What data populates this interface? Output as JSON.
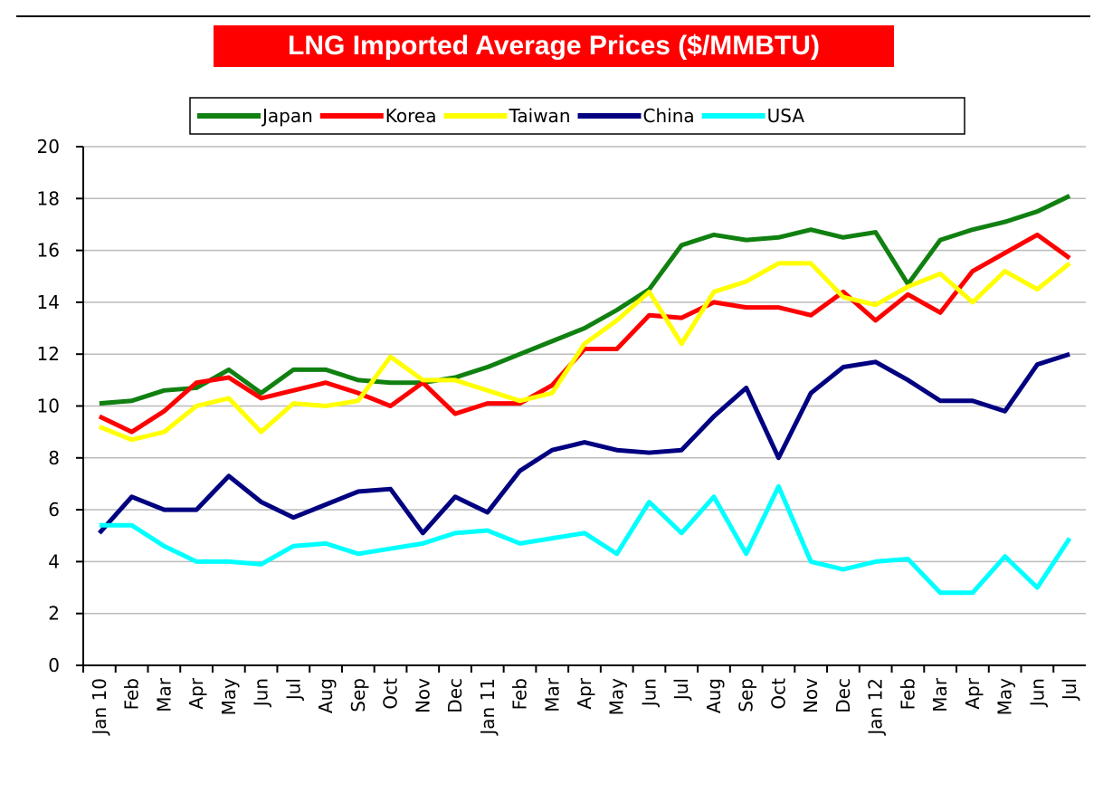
{
  "chart_data": {
    "type": "line",
    "title": "LNG Imported Average Prices ($/MMBTU)",
    "categories": [
      "Jan 10",
      "Feb",
      "Mar",
      "Apr",
      "May",
      "Jun",
      "Jul",
      "Aug",
      "Sep",
      "Oct",
      "Nov",
      "Dec",
      "Jan 11",
      "Feb",
      "Mar",
      "Apr",
      "May",
      "Jun",
      "Jul",
      "Aug",
      "Sep",
      "Oct",
      "Nov",
      "Dec",
      "Jan 12",
      "Feb",
      "Mar",
      "Apr",
      "May",
      "Jun",
      "Jul"
    ],
    "series": [
      {
        "name": "Japan",
        "color": "#108010",
        "values": [
          10.1,
          10.2,
          10.6,
          10.7,
          11.4,
          10.5,
          11.4,
          11.4,
          11.0,
          10.9,
          10.9,
          11.1,
          11.5,
          12.0,
          12.5,
          13.0,
          13.7,
          14.5,
          16.2,
          16.6,
          16.4,
          16.5,
          16.8,
          16.5,
          16.7,
          14.7,
          16.4,
          16.8,
          17.1,
          17.5,
          18.1
        ]
      },
      {
        "name": "Korea",
        "color": "#ff0000",
        "values": [
          9.6,
          9.0,
          9.8,
          10.9,
          11.1,
          10.3,
          10.6,
          10.9,
          10.5,
          10.0,
          10.9,
          9.7,
          10.1,
          10.1,
          10.8,
          12.2,
          12.2,
          13.5,
          13.4,
          14.0,
          13.8,
          13.8,
          13.5,
          14.4,
          13.3,
          14.3,
          13.6,
          15.2,
          15.9,
          16.6,
          15.7
        ]
      },
      {
        "name": "Taiwan",
        "color": "#ffff00",
        "values": [
          9.2,
          8.7,
          9.0,
          10.0,
          10.3,
          9.0,
          10.1,
          10.0,
          10.2,
          11.9,
          11.0,
          11.0,
          10.6,
          10.2,
          10.5,
          12.4,
          13.3,
          14.4,
          12.4,
          14.4,
          14.8,
          15.5,
          15.5,
          14.2,
          13.9,
          14.6,
          15.1,
          14.0,
          15.2,
          14.5,
          15.5
        ]
      },
      {
        "name": "China",
        "color": "#000080",
        "values": [
          5.1,
          6.5,
          6.0,
          6.0,
          7.3,
          6.3,
          5.7,
          6.2,
          6.7,
          6.8,
          5.1,
          6.5,
          5.9,
          7.5,
          8.3,
          8.6,
          8.3,
          8.2,
          8.3,
          9.6,
          10.7,
          8.0,
          10.5,
          11.5,
          11.7,
          11.0,
          10.2,
          10.2,
          9.8,
          11.6,
          12.0
        ]
      },
      {
        "name": "USA",
        "color": "#00ffff",
        "values": [
          5.4,
          5.4,
          4.6,
          4.0,
          4.0,
          3.9,
          4.6,
          4.7,
          4.3,
          4.5,
          4.7,
          5.1,
          5.2,
          4.7,
          4.9,
          5.1,
          4.3,
          6.3,
          5.1,
          6.5,
          4.3,
          6.9,
          4.0,
          3.7,
          4.0,
          4.1,
          2.8,
          2.8,
          4.2,
          3.0,
          4.9
        ]
      }
    ],
    "ylim": [
      0,
      20
    ],
    "yticks": [
      0,
      2,
      4,
      6,
      8,
      10,
      12,
      14,
      16,
      18,
      20
    ],
    "grid": true,
    "legend": "top"
  }
}
